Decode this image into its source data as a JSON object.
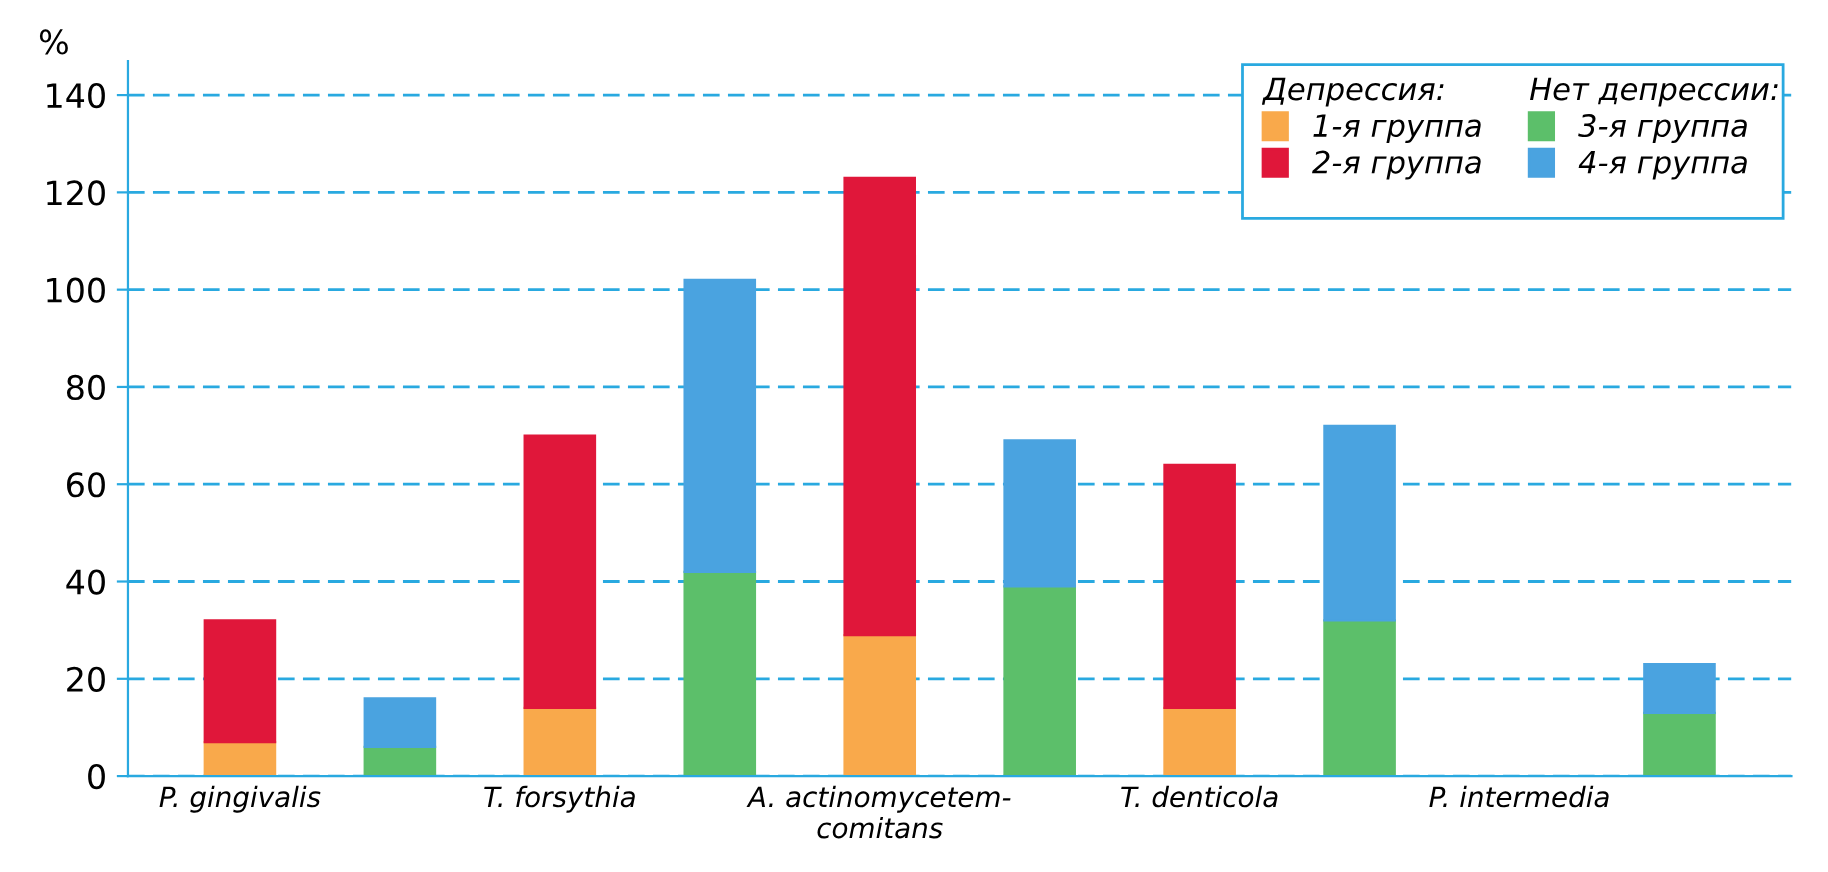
{
  "chart_data": {
    "type": "bar",
    "stacked": true,
    "ylabel": "%",
    "categories": [
      "P. gingivalis",
      null,
      "T. forsythia",
      null,
      "A. actinomycetem-\ncomitans",
      null,
      "T. denticola",
      null,
      "P. intermedia",
      null
    ],
    "legend_title": [
      "Депрессия:",
      "Нет депрессии:"
    ],
    "series": [
      {
        "name": "1-я группа",
        "color": "#f9a94b",
        "values": [
          7,
          null,
          14,
          null,
          29,
          null,
          14,
          null,
          0,
          null
        ]
      },
      {
        "name": "2-я группа",
        "color": "#e0173a",
        "values": [
          25,
          null,
          56,
          null,
          94,
          null,
          50,
          null,
          0,
          null
        ]
      },
      {
        "name": "3-я группа",
        "color": "#5cbf6a",
        "values": [
          null,
          6,
          null,
          42,
          null,
          39,
          null,
          32,
          null,
          13
        ]
      },
      {
        "name": "4-я группа",
        "color": "#4aa3e0",
        "values": [
          null,
          10,
          null,
          60,
          null,
          30,
          null,
          40,
          null,
          10
        ]
      }
    ],
    "ylim": [
      0,
      147
    ],
    "yticks": [
      0,
      20,
      40,
      60,
      80,
      100,
      120,
      140
    ],
    "grid": "y",
    "legend": "top right"
  }
}
